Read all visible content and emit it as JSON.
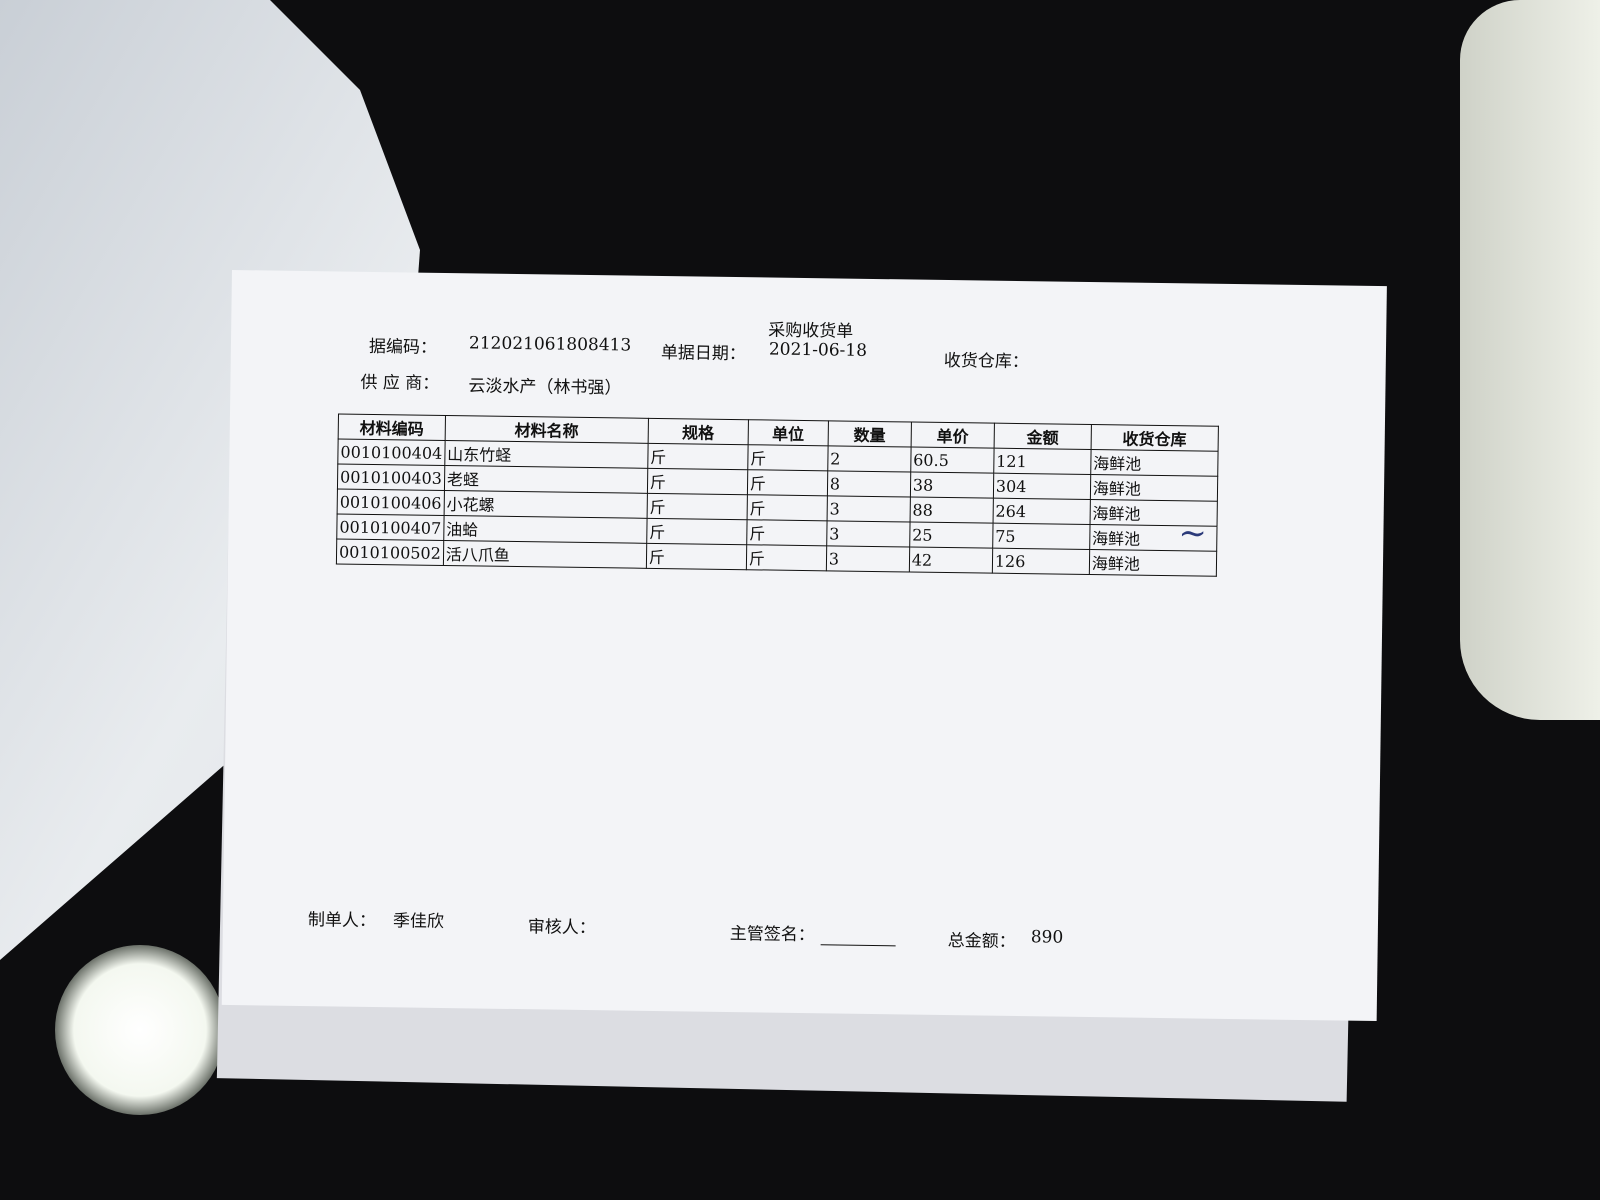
{
  "document": {
    "title": "采购收货单",
    "header": {
      "code_label": "据编码：",
      "code": "212021061808413",
      "date_label": "单据日期：",
      "date": "2021-06-18",
      "warehouse_label": "收货仓库：",
      "supplier_label": "供 应 商：",
      "supplier": "云淡水产（林书强）"
    },
    "table": {
      "columns": [
        "材料编码",
        "材料名称",
        "规格",
        "单位",
        "数量",
        "单价",
        "金额",
        "收货仓库"
      ],
      "rows": [
        [
          "0010100404",
          "山东竹蛏",
          "斤",
          "斤",
          "2",
          "60.5",
          "121",
          "海鲜池"
        ],
        [
          "0010100403",
          "老蛏",
          "斤",
          "斤",
          "8",
          "38",
          "304",
          "海鲜池"
        ],
        [
          "0010100406",
          "小花螺",
          "斤",
          "斤",
          "3",
          "88",
          "264",
          "海鲜池"
        ],
        [
          "0010100407",
          "油蛤",
          "斤",
          "斤",
          "3",
          "25",
          "75",
          "海鲜池"
        ],
        [
          "0010100502",
          "活八爪鱼",
          "斤",
          "斤",
          "3",
          "42",
          "126",
          "海鲜池"
        ]
      ]
    },
    "footer": {
      "maker_label": "制单人：",
      "maker": "季佳欣",
      "reviewer_label": "审核人：",
      "supervisor_label": "主管签名：",
      "total_label": "总金额：",
      "total": "890"
    }
  }
}
